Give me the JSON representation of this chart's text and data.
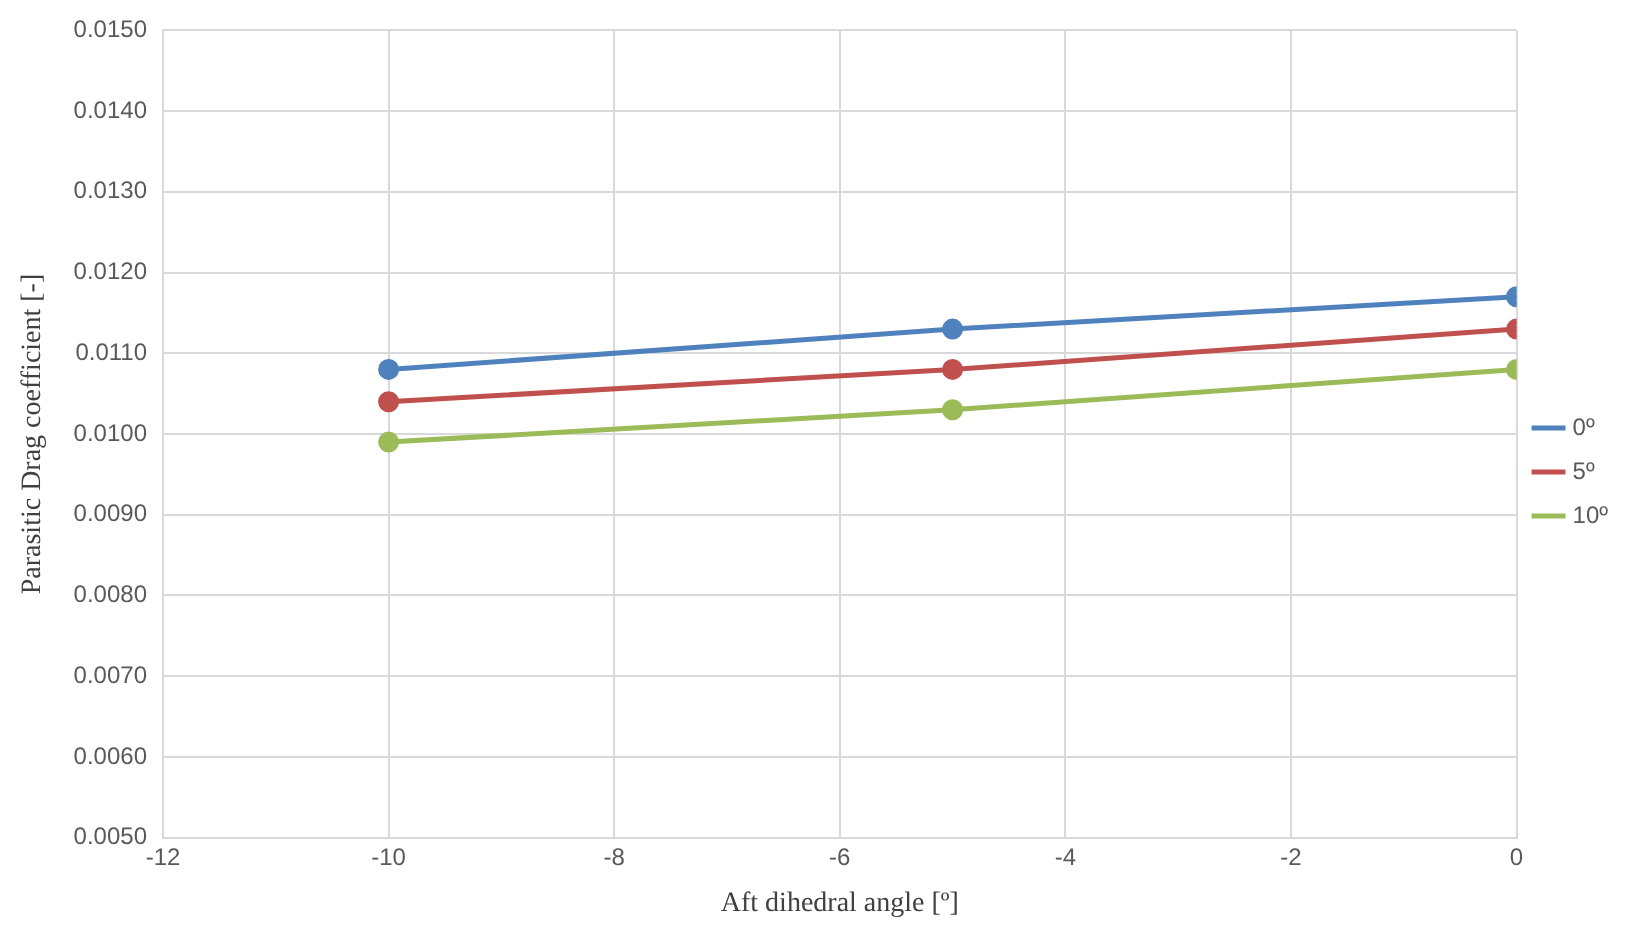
{
  "chart_data": {
    "type": "line",
    "xlabel": "Aft dihedral angle [º]",
    "ylabel": "Parasitic Drag coefficient [-]",
    "x": [
      -10,
      -5,
      0
    ],
    "series": [
      {
        "name": "0º",
        "color": "#4f81bd",
        "values": [
          0.0108,
          0.0113,
          0.0117
        ]
      },
      {
        "name": "5º",
        "color": "#c0504d",
        "values": [
          0.0104,
          0.0108,
          0.0113
        ]
      },
      {
        "name": "10º",
        "color": "#9bbb59",
        "values": [
          0.0099,
          0.0103,
          0.0108
        ]
      }
    ],
    "xlim": [
      -12,
      0
    ],
    "xticks": [
      -12,
      -10,
      -8,
      -6,
      -4,
      -2,
      0
    ],
    "ylim": [
      0.005,
      0.015
    ],
    "yticks": [
      {
        "value": 0.005,
        "label": "0.0050"
      },
      {
        "value": 0.006,
        "label": "0.0060"
      },
      {
        "value": 0.007,
        "label": "0.0070"
      },
      {
        "value": 0.008,
        "label": "0.0080"
      },
      {
        "value": 0.009,
        "label": "0.0090"
      },
      {
        "value": 0.01,
        "label": "0.0100"
      },
      {
        "value": 0.011,
        "label": "0.0110"
      },
      {
        "value": 0.012,
        "label": "0.0120"
      },
      {
        "value": 0.013,
        "label": "0.0130"
      },
      {
        "value": 0.014,
        "label": "0.0140"
      },
      {
        "value": 0.015,
        "label": "0.0150"
      }
    ],
    "grid": true,
    "legend": "right",
    "marker": "circle",
    "line_style": "solid"
  }
}
